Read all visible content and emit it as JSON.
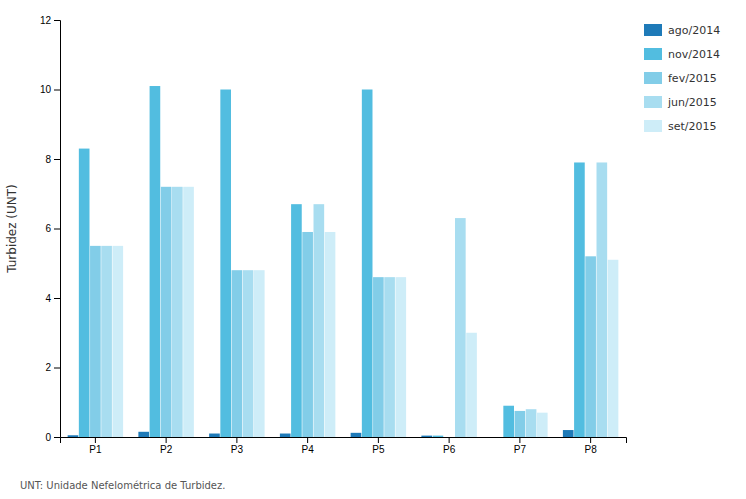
{
  "chart_data": {
    "type": "bar",
    "y_label": "Turbidez (UNT)",
    "annotations": [
      "UNT: Unidade Nefelométrica de Turbidez."
    ],
    "categories": [
      "P1",
      "P2",
      "P3",
      "P4",
      "P5",
      "P6",
      "P7",
      "P8"
    ],
    "series": [
      {
        "name": "ago/2014",
        "color": "#1e7ab8",
        "values": [
          0.05,
          0.15,
          0.1,
          0.1,
          0.12,
          0.04,
          0.0,
          0.2
        ]
      },
      {
        "name": "nov/2014",
        "color": "#52bde0",
        "values": [
          8.3,
          10.1,
          10.0,
          6.7,
          10.0,
          0.04,
          0.9,
          7.9
        ]
      },
      {
        "name": "fev/2015",
        "color": "#82cde8",
        "values": [
          5.5,
          7.2,
          4.8,
          5.9,
          4.6,
          0.0,
          0.75,
          5.2
        ]
      },
      {
        "name": "jun/2015",
        "color": "#a8ddf0",
        "values": [
          5.5,
          7.2,
          4.8,
          6.7,
          4.6,
          6.3,
          0.8,
          7.9
        ]
      },
      {
        "name": "set/2015",
        "color": "#ceedf8",
        "values": [
          5.5,
          7.2,
          4.8,
          5.9,
          4.6,
          3.0,
          0.7,
          5.1
        ]
      }
    ],
    "ylim": [
      0,
      12
    ],
    "yticks": [
      0,
      2,
      4,
      6,
      8,
      10,
      12
    ],
    "grid": false,
    "legend": "right"
  }
}
